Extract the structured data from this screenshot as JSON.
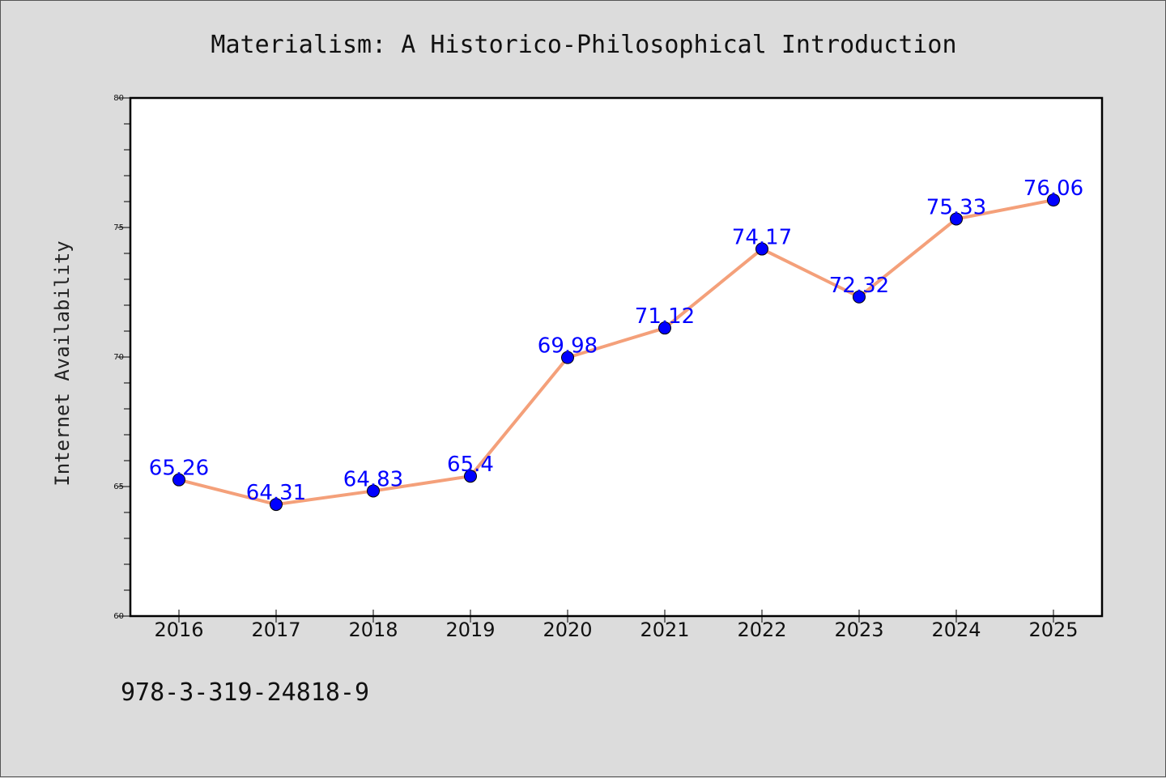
{
  "chart_data": {
    "type": "line",
    "title": "Materialism: A Historico-Philosophical Introduction",
    "xlabel": "",
    "ylabel": "Internet Availability",
    "footer": "978-3-319-24818-9",
    "categories": [
      "2016",
      "2017",
      "2018",
      "2019",
      "2020",
      "2021",
      "2022",
      "2023",
      "2024",
      "2025"
    ],
    "series": [
      {
        "values": [
          65.26,
          64.31,
          64.83,
          65.4,
          69.98,
          71.12,
          74.17,
          72.32,
          75.33,
          76.06
        ],
        "labels": [
          "65.26",
          "64.31",
          "64.83",
          "65.4",
          "69.98",
          "71.12",
          "74.17",
          "72.32",
          "75.33",
          "76.06"
        ],
        "line_color": "#f4a07a",
        "marker_color": "#0000ff"
      }
    ],
    "ylim": [
      60,
      80
    ],
    "yticks": [
      60,
      65,
      70,
      75,
      80
    ],
    "grid": false,
    "legend": "none",
    "colors": {
      "background": "#dcdcdc",
      "plot_background": "#ffffff",
      "label_color": "#0000ff"
    }
  }
}
